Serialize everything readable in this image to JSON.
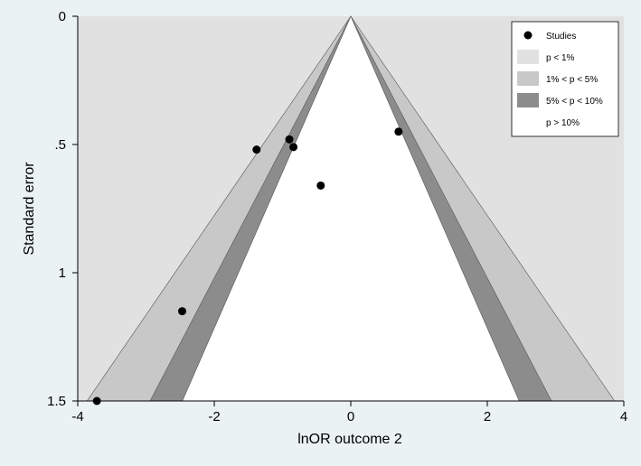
{
  "chart_data": {
    "type": "scatter",
    "title": "",
    "xlabel": "lnOR outcome 2",
    "ylabel": "Standard error",
    "xlim": [
      -4,
      4
    ],
    "ylim": [
      0,
      1.5
    ],
    "y_reversed": true,
    "grid": false,
    "legend_position": "top-right",
    "x_ticks": [
      {
        "value": -4,
        "label": "-4"
      },
      {
        "value": -2,
        "label": "-2"
      },
      {
        "value": 0,
        "label": "0"
      },
      {
        "value": 2,
        "label": "2"
      },
      {
        "value": 4,
        "label": "4"
      }
    ],
    "y_ticks": [
      {
        "value": 0,
        "label": "0"
      },
      {
        "value": 0.5,
        "label": ".5"
      },
      {
        "value": 1,
        "label": "1"
      },
      {
        "value": 1.5,
        "label": "1.5"
      }
    ],
    "contour_z": [
      {
        "label": "p > 10%",
        "z": 1.645,
        "color": "#ffffff"
      },
      {
        "label": "5% < p < 10%",
        "z": 1.96,
        "color": "#8c8c8c"
      },
      {
        "label": "1% < p < 5%",
        "z": 2.576,
        "color": "#c8c8c8"
      },
      {
        "label": "p < 1%",
        "color": "#e1e1e1"
      }
    ],
    "series": [
      {
        "name": "Studies",
        "color": "#000000",
        "points": [
          {
            "x": -3.72,
            "y": 1.5
          },
          {
            "x": -2.47,
            "y": 1.15
          },
          {
            "x": -1.38,
            "y": 0.52
          },
          {
            "x": -0.9,
            "y": 0.48
          },
          {
            "x": -0.84,
            "y": 0.51
          },
          {
            "x": -0.44,
            "y": 0.66
          },
          {
            "x": 0.7,
            "y": 0.45
          }
        ]
      }
    ],
    "legend": [
      "Studies",
      "p < 1%",
      "1% < p < 5%",
      "5% < p < 10%",
      "p > 10%"
    ]
  }
}
